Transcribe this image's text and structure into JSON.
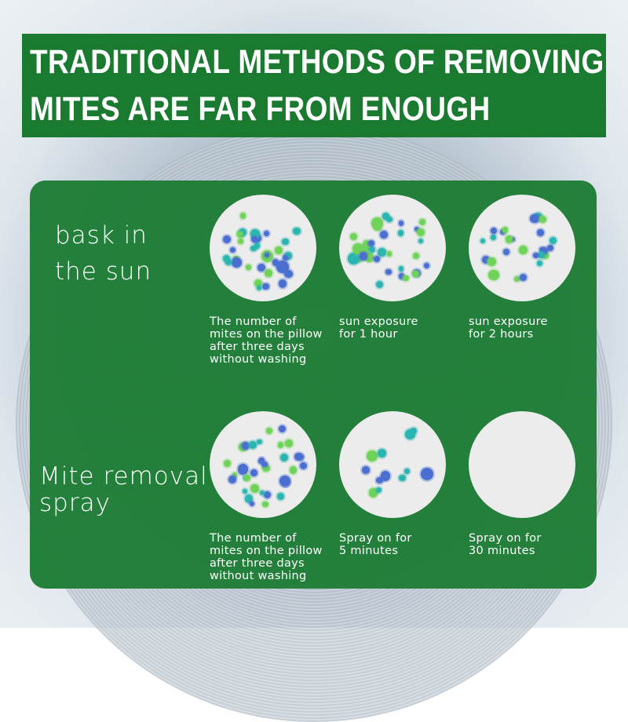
{
  "header": {
    "line1": "TRADITIONAL METHODS OF REMOVING",
    "line2": "MITES ARE FAR FROM ENOUGH"
  },
  "rows": [
    {
      "label1": "bask in",
      "label2": "the sun",
      "captions": [
        [
          "The number of",
          "mites on the pillow",
          "after three days",
          "without washing"
        ],
        [
          "sun exposure",
          "for 1 hour"
        ],
        [
          "sun exposure",
          "for 2 hours"
        ]
      ]
    },
    {
      "label1": "Mite removal",
      "label2": "spray",
      "captions": [
        [
          "The number of",
          "mites on the pillow",
          "after three days",
          "without washing"
        ],
        [
          "Spray on for",
          "5 minutes"
        ],
        [
          "Spray on for",
          "30 minutes"
        ]
      ]
    }
  ],
  "colors": {
    "green": "#1e7d36",
    "mite_blue": "#4a6fd0",
    "mite_teal": "#2bb5b0",
    "mite_green": "#6fd35a"
  }
}
